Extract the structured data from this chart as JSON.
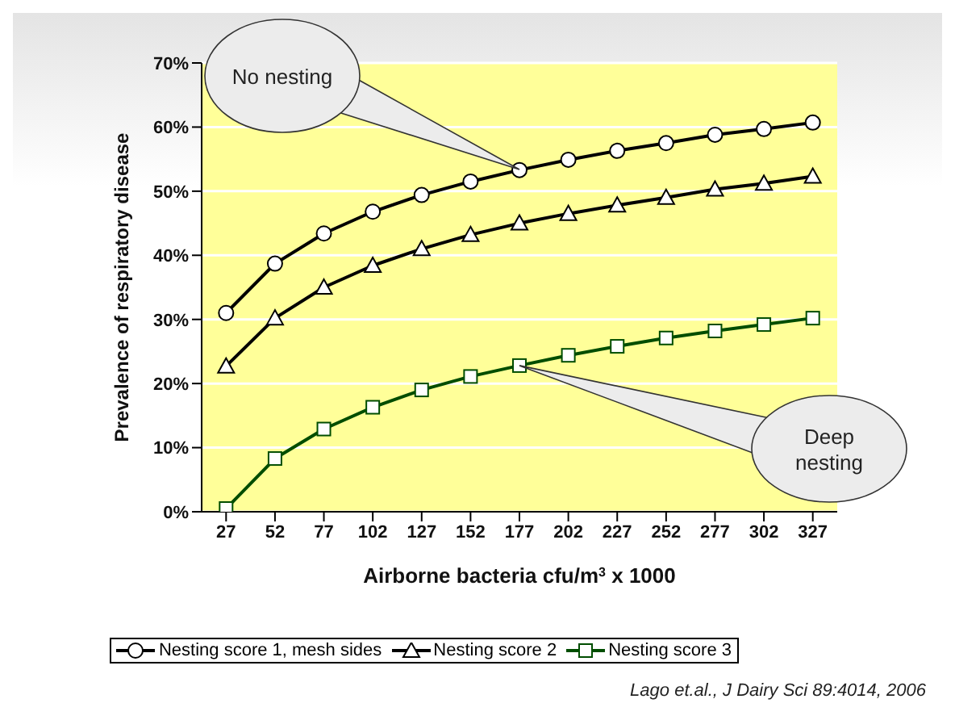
{
  "chart_data": {
    "type": "line",
    "xlabel": "Airborne bacteria cfu/m$^{3}$ x 1000",
    "ylabel": "Prevalence of respiratory disease",
    "categories": [
      "27",
      "52",
      "77",
      "102",
      "127",
      "152",
      "177",
      "202",
      "227",
      "252",
      "277",
      "302",
      "327"
    ],
    "series": [
      {
        "name": "Nesting score 1, mesh sides",
        "color": "#000000",
        "marker": "circle",
        "values": [
          31.0,
          38.7,
          43.4,
          46.8,
          49.4,
          51.5,
          53.3,
          54.9,
          56.3,
          57.5,
          58.8,
          59.7,
          60.7
        ]
      },
      {
        "name": "Nesting score 2",
        "color": "#000000",
        "marker": "triangle",
        "values": [
          22.7,
          30.2,
          35.0,
          38.4,
          41.0,
          43.2,
          45.0,
          46.5,
          47.8,
          49.0,
          50.3,
          51.2,
          52.3
        ]
      },
      {
        "name": "Nesting score 3",
        "color": "#004d00",
        "marker": "square",
        "values": [
          0.5,
          8.3,
          12.9,
          16.3,
          19.0,
          21.1,
          22.8,
          24.4,
          25.8,
          27.1,
          28.2,
          29.2,
          30.2
        ]
      }
    ],
    "ylim": [
      0,
      70
    ],
    "yticks": [
      {
        "value": 0,
        "label": "0%"
      },
      {
        "value": 10,
        "label": "10%"
      },
      {
        "value": 20,
        "label": "20%"
      },
      {
        "value": 30,
        "label": "30%"
      },
      {
        "value": 40,
        "label": "40%"
      },
      {
        "value": 50,
        "label": "50%"
      },
      {
        "value": 60,
        "label": "60%"
      },
      {
        "value": 70,
        "label": "70%"
      }
    ],
    "grid": "y",
    "legend": "bottom",
    "line_style": "solid",
    "annotations": [
      "No nesting",
      {
        "text": "Deep nesting",
        "x": "177",
        "y": 22.8
      },
      "Lago et.al., J Dairy Sci 89:4014, 2006"
    ]
  }
}
